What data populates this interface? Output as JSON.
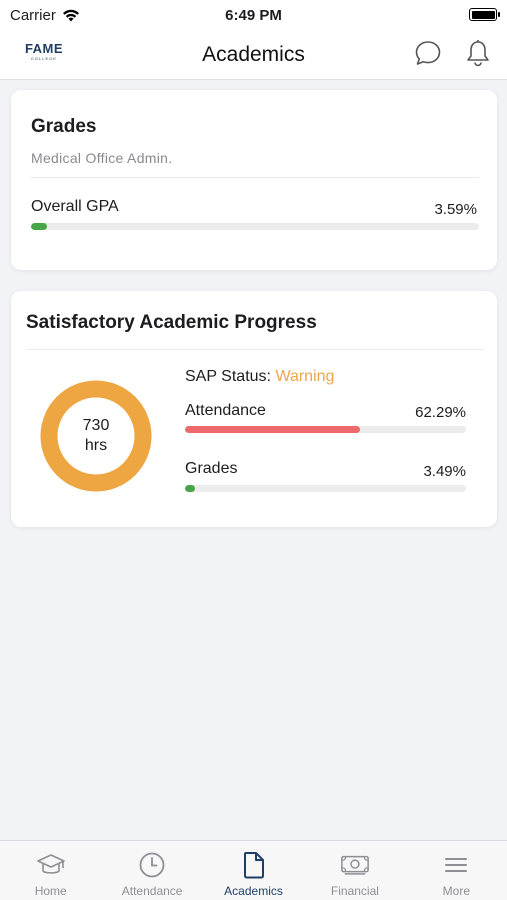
{
  "status_bar": {
    "carrier": "Carrier",
    "time": "6:49 PM"
  },
  "header": {
    "logo_text": "FAME",
    "logo_subtext": "COLLEGE",
    "title": "Academics"
  },
  "grades_card": {
    "title": "Grades",
    "program": "Medical Office Admin.",
    "gpa_label": "Overall GPA",
    "gpa_value": "3.59%",
    "gpa_fill_percent": 3.59
  },
  "sap_card": {
    "title": "Satisfactory Academic Progress",
    "hours_value": "730",
    "hours_unit": "hrs",
    "status_label": "SAP Status:",
    "status_value": "Warning",
    "attendance_label": "Attendance",
    "attendance_value": "62.29%",
    "attendance_fill_percent": 62.29,
    "grades_label": "Grades",
    "grades_value": "3.49%",
    "grades_fill_percent": 3.49
  },
  "tabs": [
    {
      "label": "Home",
      "icon": "graduation-cap-icon"
    },
    {
      "label": "Attendance",
      "icon": "clock-icon"
    },
    {
      "label": "Academics",
      "icon": "document-icon",
      "active": true
    },
    {
      "label": "Financial",
      "icon": "money-icon"
    },
    {
      "label": "More",
      "icon": "menu-icon"
    }
  ],
  "colors": {
    "gpa_bar": "#47a447",
    "attendance_bar": "#ec6a6c",
    "grades_bar": "#47a447",
    "donut": "#eea642",
    "warning": "#eea64a",
    "active_tab": "#1f3e66"
  }
}
